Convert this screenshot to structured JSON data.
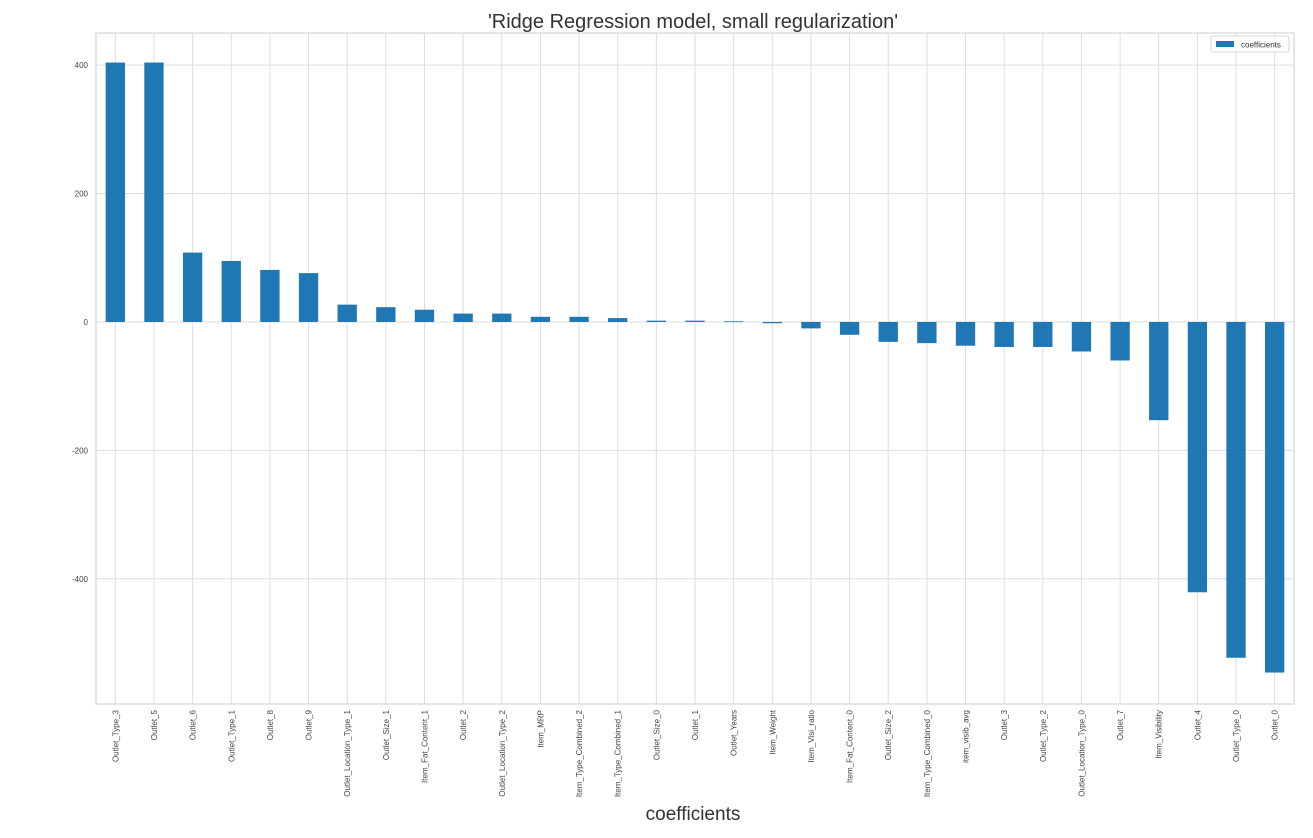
{
  "chart_data": {
    "type": "bar",
    "title": "'Ridge Regression model, small regularization'",
    "xlabel": "coefficients",
    "ylabel": "",
    "ylim": [
      -595,
      450
    ],
    "yticks": [
      400,
      200,
      0,
      -200,
      -400
    ],
    "grid": true,
    "legend_position": "top-right",
    "color": "#1f77b4",
    "categories": [
      "Outlet_Type_3",
      "Outlet_5",
      "Outlet_6",
      "Outlet_Type_1",
      "Outlet_8",
      "Outlet_9",
      "Outlet_Location_Type_1",
      "Outlet_Size_1",
      "Item_Fat_Content_1",
      "Outlet_2",
      "Outlet_Location_Type_2",
      "Item_MRP",
      "Item_Type_Combined_2",
      "Item_Type_Combined_1",
      "Outlet_Size_0",
      "Outlet_1",
      "Outlet_Years",
      "Item_Weight",
      "Item_Visi_ratio",
      "Item_Fat_Content_0",
      "Outlet_Size_2",
      "Item_Type_Combined_0",
      "item_visib_avg",
      "Outlet_3",
      "Outlet_Type_2",
      "Outlet_Location_Type_0",
      "Outlet_7",
      "Item_Visibility",
      "Outlet_4",
      "Outlet_Type_0",
      "Outlet_0"
    ],
    "series": [
      {
        "name": "coefficients",
        "values": [
          404,
          404,
          108,
          95,
          81,
          76,
          27,
          23,
          19,
          13,
          13,
          8,
          8,
          6,
          2,
          2,
          1,
          -2,
          -10,
          -20,
          -31,
          -33,
          -37,
          -39,
          -39,
          -46,
          -60,
          -153,
          -421,
          -523,
          -546
        ]
      }
    ]
  }
}
